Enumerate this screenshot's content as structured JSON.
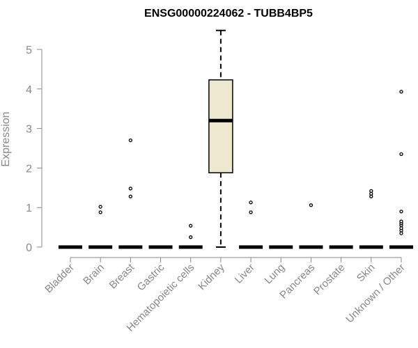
{
  "chart_data": {
    "type": "box",
    "title": "ENSG00000224062 - TUBB4BP5",
    "ylabel": "Expression",
    "xlabel": "",
    "ylim": [
      0,
      5
    ],
    "yticks": [
      0,
      1,
      2,
      3,
      4,
      5
    ],
    "grid": false,
    "box_fill": "#EEE8D0",
    "categories": [
      "Bladder",
      "Brain",
      "Breast",
      "Gastric",
      "Hematopoietic cells",
      "Kidney",
      "Liver",
      "Lung",
      "Pancreas",
      "Prostate",
      "Skin",
      "Unknown / Other"
    ],
    "boxes": [
      {
        "category": "Bladder",
        "min": 0,
        "q1": 0,
        "median": 0,
        "q3": 0,
        "max": 0,
        "outliers": []
      },
      {
        "category": "Brain",
        "min": 0,
        "q1": 0,
        "median": 0,
        "q3": 0,
        "max": 0,
        "outliers": [
          0.88,
          1.02
        ]
      },
      {
        "category": "Breast",
        "min": 0,
        "q1": 0,
        "median": 0,
        "q3": 0,
        "max": 0,
        "outliers": [
          1.28,
          1.48,
          2.7
        ]
      },
      {
        "category": "Gastric",
        "min": 0,
        "q1": 0,
        "median": 0,
        "q3": 0,
        "max": 0,
        "outliers": []
      },
      {
        "category": "Hematopoietic cells",
        "min": 0,
        "q1": 0,
        "median": 0,
        "q3": 0,
        "max": 0,
        "outliers": [
          0.25,
          0.54
        ]
      },
      {
        "category": "Kidney",
        "min": 0,
        "q1": 1.88,
        "median": 3.2,
        "q3": 4.23,
        "max": 5.48,
        "outliers": []
      },
      {
        "category": "Liver",
        "min": 0,
        "q1": 0,
        "median": 0,
        "q3": 0,
        "max": 0,
        "outliers": [
          0.88,
          1.13
        ]
      },
      {
        "category": "Lung",
        "min": 0,
        "q1": 0,
        "median": 0,
        "q3": 0,
        "max": 0,
        "outliers": []
      },
      {
        "category": "Pancreas",
        "min": 0,
        "q1": 0,
        "median": 0,
        "q3": 0,
        "max": 0,
        "outliers": [
          1.06
        ]
      },
      {
        "category": "Prostate",
        "min": 0,
        "q1": 0,
        "median": 0,
        "q3": 0,
        "max": 0,
        "outliers": []
      },
      {
        "category": "Skin",
        "min": 0,
        "q1": 0,
        "median": 0,
        "q3": 0,
        "max": 0,
        "outliers": [
          1.28,
          1.35,
          1.42
        ]
      },
      {
        "category": "Unknown / Other",
        "min": 0,
        "q1": 0,
        "median": 0,
        "q3": 0,
        "max": 0,
        "outliers": [
          0.35,
          0.42,
          0.48,
          0.55,
          0.6,
          0.65,
          0.9,
          2.35,
          3.93
        ]
      }
    ]
  }
}
